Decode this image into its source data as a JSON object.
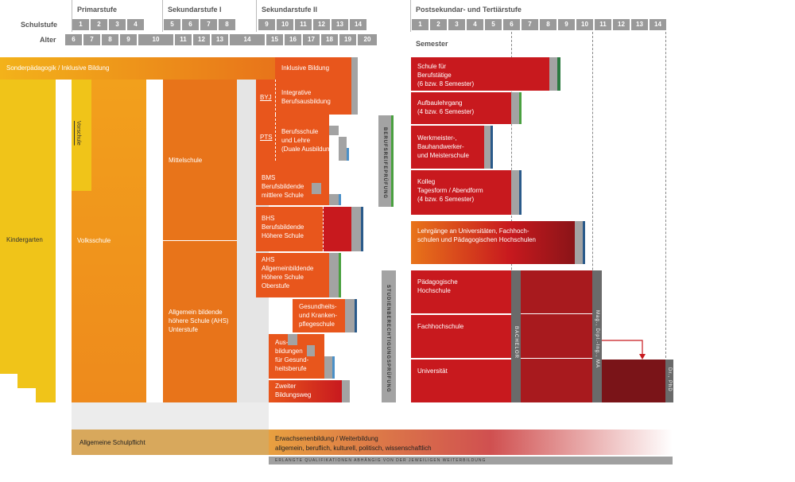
{
  "header": {
    "stage_titles": [
      "Primarstufe",
      "Sekundarstufe I",
      "Sekundarstufe II",
      "Postsekundar- und Tertiärstufe"
    ],
    "schulstufe_label": "Schulstufe",
    "alter_label": "Alter",
    "semester_label": "Semester",
    "schulstufen": [
      "1",
      "2",
      "3",
      "4",
      "5",
      "6",
      "7",
      "8",
      "9",
      "10",
      "11",
      "12",
      "13",
      "14"
    ],
    "ages": [
      "6",
      "7",
      "8",
      "9",
      "10",
      "11",
      "12",
      "13",
      "14",
      "15",
      "16",
      "17",
      "18",
      "19",
      "20"
    ],
    "semesters": [
      "1",
      "2",
      "3",
      "4",
      "5",
      "6",
      "7",
      "8",
      "9",
      "10",
      "11",
      "12",
      "13",
      "14"
    ]
  },
  "left": {
    "sonderpaedagogik": "Sonderpädagogik / Inklusive Bildung",
    "kindergarten": "Kindergarten",
    "vorschule": "Vorschule",
    "volksschule": "Volksschule",
    "mittelschule": "Mittelschule",
    "ahs_unterstufe": "Allgemein bildende\nhöhere Schule (AHS)\nUnterstufe",
    "schulpflicht": "Allgemeine Schulpflicht"
  },
  "secondary": {
    "inklusive": "Inklusive Bildung",
    "byj": "BYJ",
    "integrative": "Integrative\nBerufsausbildung",
    "pts": "PTS",
    "berufsschule": "Berufsschule\nund Lehre\n(Duale Ausbildung)",
    "bms": "BMS\nBerufsbildende\nmittlere Schule",
    "bhs": "BHS\nBerufsbildende\nHöhere Schule",
    "ahs_oberstufe": "AHS\nAllgemeinbildende\nHöhere Schule\nOberstufe",
    "gesundheit": "Gesundheits-\nund Kranken-\npflegeschule",
    "ausbildungen": "Aus-\nbildungen\nfür Gesund-\nheitsberufe",
    "zweiter": "Zweiter\nBildungsweg"
  },
  "vertical_labels": {
    "berufsreife": "BERUFSREIFEPRÜFUNG",
    "studien": "STUDIENBERECHTIGUNGSPRÜFUNG",
    "bachelor": "BACHELOR",
    "master": "Mag., Dipl.-Ing., MA",
    "doctor": "Dr., PhD"
  },
  "tertiary": {
    "berufstaetige": "Schule für\nBerufstätige\n(6 bzw. 8 Semester)",
    "aufbaulehrgang": "Aufbaulehrgang\n(4 bzw. 6 Semester)",
    "werkmeister": "Werkmeister-,\nBauhandwerker-\nund Meisterschule",
    "kolleg": "Kolleg\nTagesform / Abendform\n(4 bzw. 6 Semester)",
    "lehrgaenge": "Lehrgänge an Universitäten, Fachhoch-\nschulen und Pädagogischen Hochschulen",
    "paedagogische": "Pädagogische\nHochschule",
    "fachhochschule": "Fachhochschule",
    "universitaet": "Universität"
  },
  "bottom": {
    "erwachsenen": "Erwachsenenbildung / Weiterbildung",
    "erwachsenen_sub": "allgemein, beruflich, kulturell, politisch, wissenschaftlich",
    "footnote": "ERLANGTE QUALIFIKATIONEN ABHÄNGIG VON DER JEWEILIGEN WEITERBILDUNG"
  },
  "colors": {
    "red": "#c8191e",
    "orange": "#e8561c",
    "yellow": "#e8c41c",
    "gray": "#a3a3a3",
    "darkred": "#7a1418"
  }
}
